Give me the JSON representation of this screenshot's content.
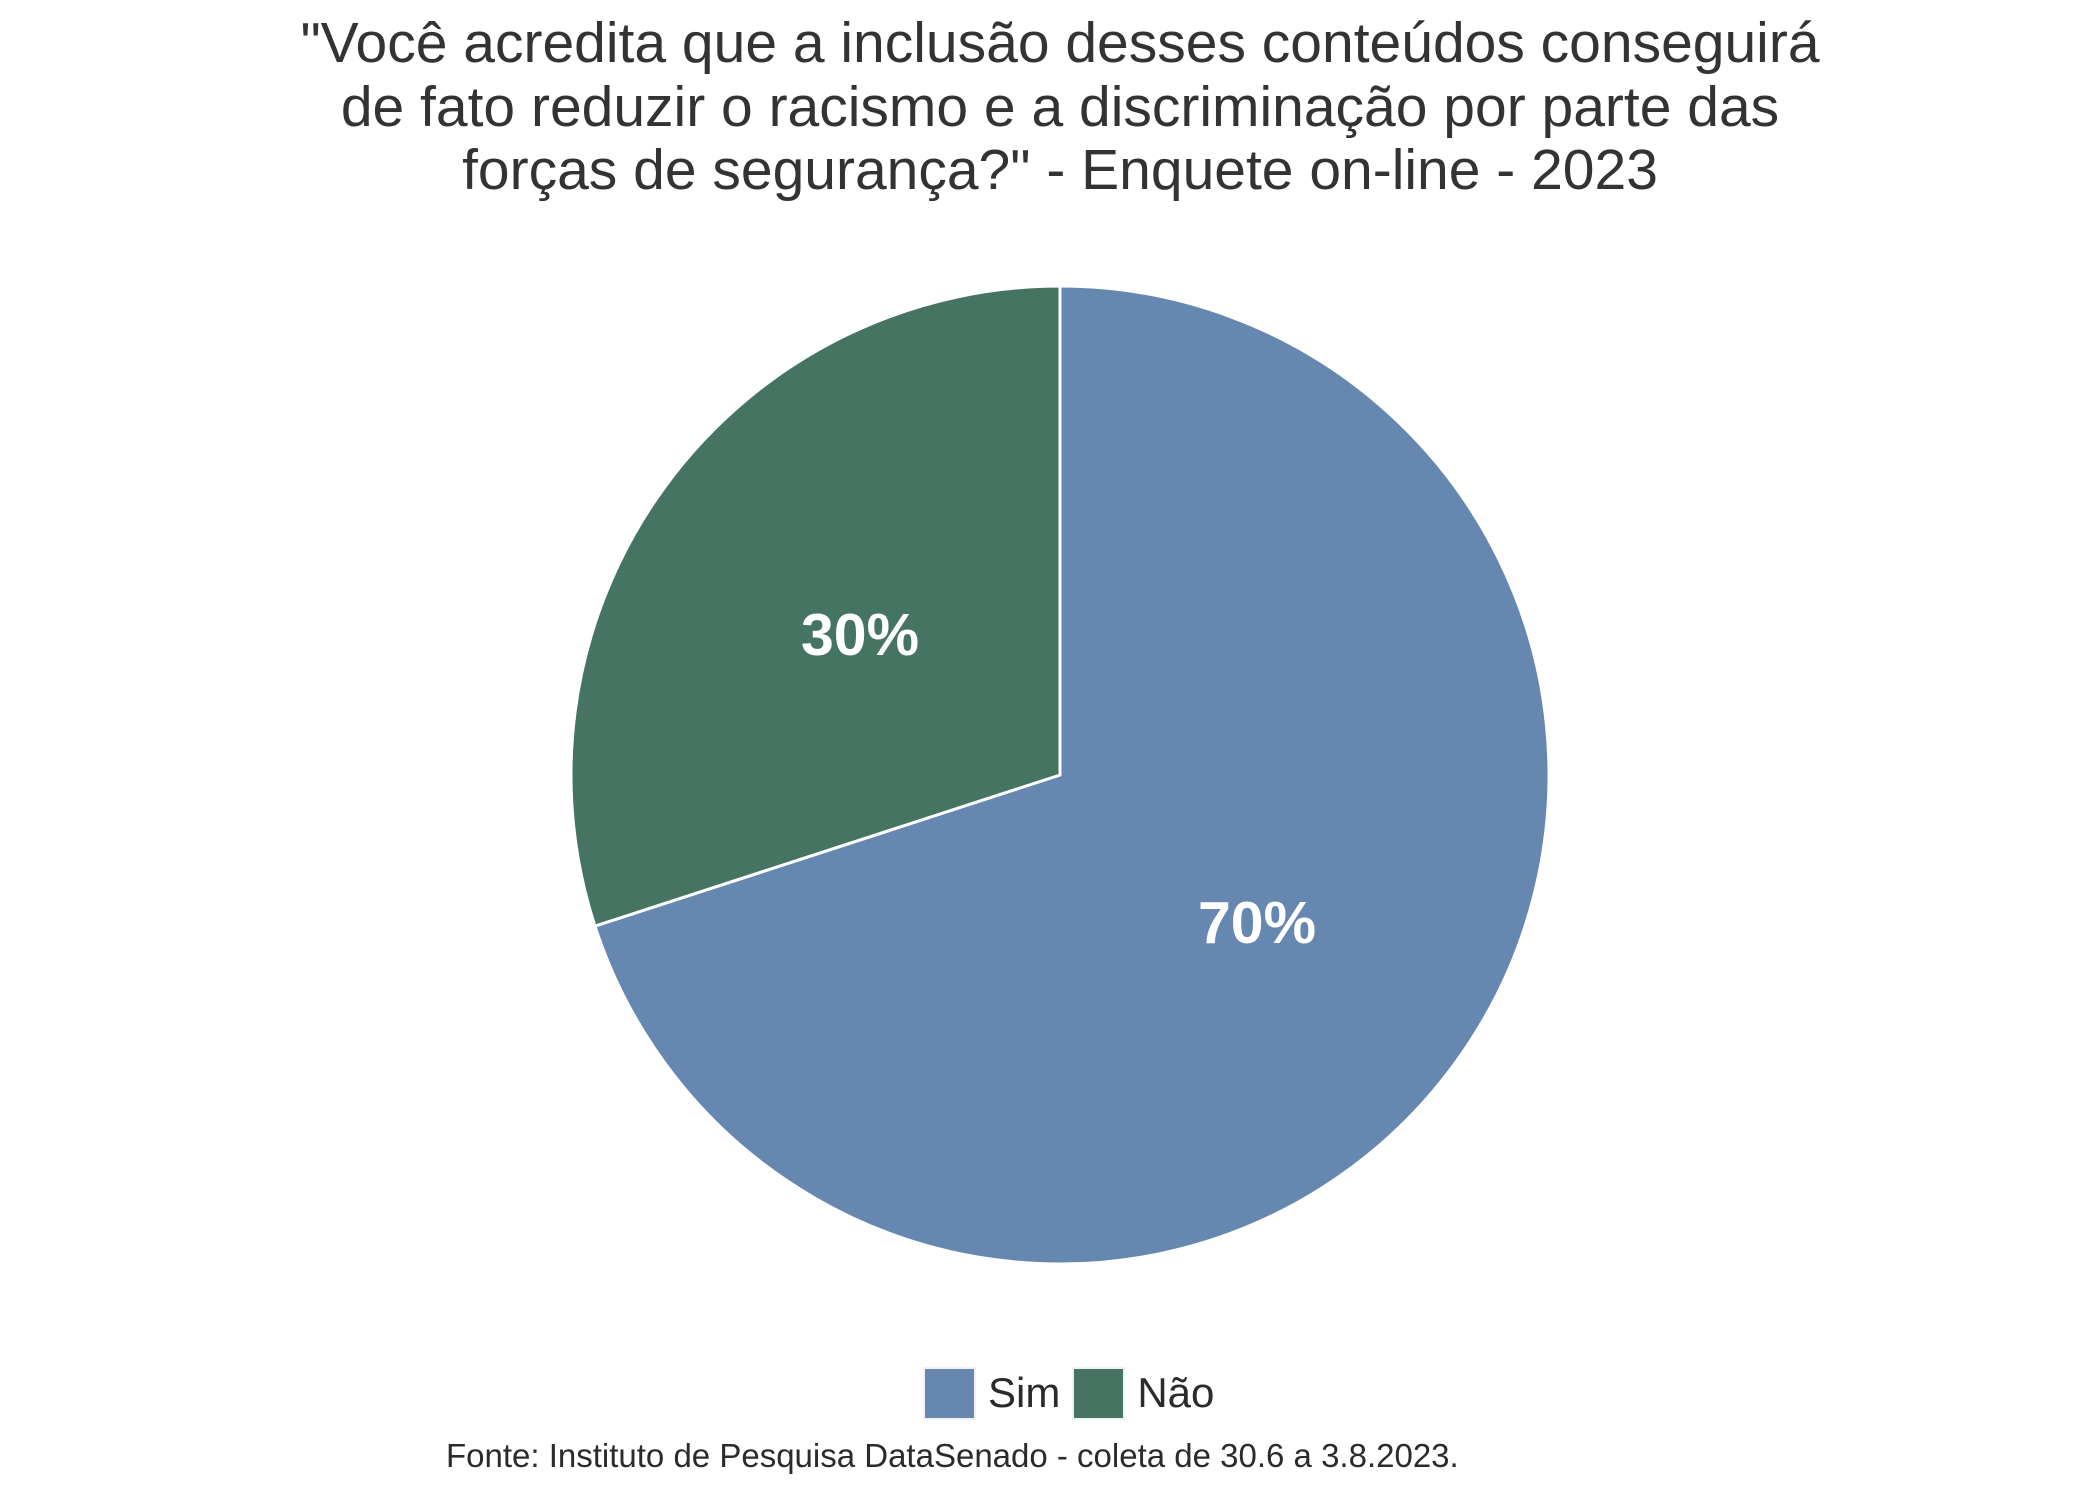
{
  "title": {
    "lines": [
      "\"Você acredita que a inclusão desses conteúdos conseguirá",
      "de fato reduzir o racismo e a discriminação por parte das",
      "forças de segurança?\" - Enquete on-line - 2023"
    ]
  },
  "legend": {
    "items": [
      {
        "label": "Sim",
        "color": "#6687AF"
      },
      {
        "label": "Não",
        "color": "#467462"
      }
    ]
  },
  "labels": {
    "sim": "70%",
    "nao": "30%"
  },
  "footer": "Fonte: Instituto de Pesquisa DataSenado - coleta de 30.6 a 3.8.2023.",
  "chart_data": {
    "type": "pie",
    "title": "\"Você acredita que a inclusão desses conteúdos conseguirá de fato reduzir o racismo e a discriminação por parte das forças de segurança?\" - Enquete on-line - 2023",
    "categories": [
      "Sim",
      "Não"
    ],
    "values": [
      70,
      30
    ],
    "unit": "%",
    "colors": [
      "#6687AF",
      "#467462"
    ],
    "data_labels": [
      "70%",
      "30%"
    ],
    "legend_position": "bottom",
    "caption": "Fonte: Instituto de Pesquisa DataSenado - coleta de 30.6 a 3.8.2023."
  }
}
